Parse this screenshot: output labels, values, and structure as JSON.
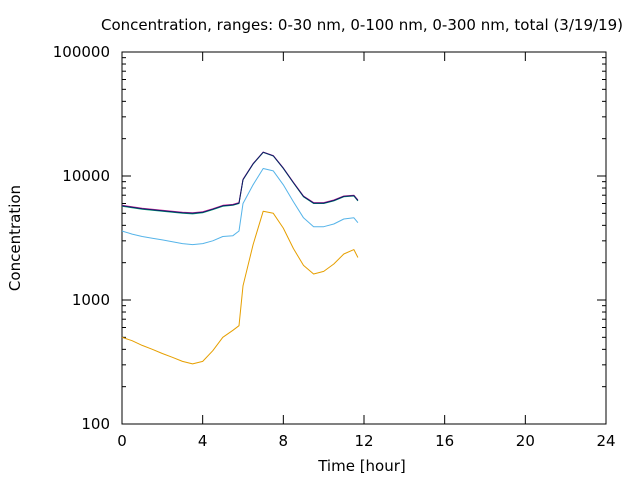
{
  "chart_data": {
    "type": "line",
    "title": "Concentration, ranges: 0-30 nm, 0-100 nm, 0-300 nm, total (3/19/19)",
    "xlabel": "Time [hour]",
    "ylabel": "Concentration",
    "xlim": [
      0,
      24
    ],
    "ylim": [
      100,
      100000
    ],
    "yscale": "log",
    "x_ticks": [
      0,
      4,
      8,
      12,
      16,
      20,
      24
    ],
    "x_tick_labels": [
      "0",
      "4",
      "8",
      "12",
      "16",
      "20",
      "24"
    ],
    "y_ticks": [
      100,
      1000,
      10000,
      100000
    ],
    "y_tick_labels": [
      "100",
      "1000",
      "10000",
      "100000"
    ],
    "grid": false,
    "legend": "none",
    "x": [
      0,
      0.5,
      1,
      1.5,
      2,
      2.5,
      3,
      3.5,
      4,
      4.5,
      5,
      5.5,
      5.8,
      6,
      6.5,
      7,
      7.5,
      8,
      8.5,
      9,
      9.5,
      10,
      10.5,
      11,
      11.5,
      11.7
    ],
    "series": [
      {
        "color": "#e69f00",
        "values": [
          500,
          470,
          430,
          400,
          370,
          345,
          320,
          305,
          320,
          390,
          500,
          570,
          620,
          1300,
          2800,
          5200,
          5000,
          3800,
          2600,
          1900,
          1620,
          1700,
          1950,
          2350,
          2550,
          2200
        ]
      },
      {
        "color": "#56b4e9",
        "values": [
          3600,
          3400,
          3250,
          3150,
          3050,
          2950,
          2850,
          2800,
          2850,
          3000,
          3250,
          3300,
          3600,
          6000,
          8500,
          11500,
          11000,
          8500,
          6200,
          4600,
          3900,
          3900,
          4100,
          4500,
          4600,
          4200
        ]
      },
      {
        "color": "#009e73",
        "values": [
          5700,
          5550,
          5400,
          5300,
          5200,
          5100,
          5000,
          4950,
          5050,
          5350,
          5700,
          5800,
          6000,
          9300,
          12500,
          15500,
          14500,
          11500,
          8800,
          6800,
          6000,
          6000,
          6300,
          6800,
          6900,
          6300
        ]
      },
      {
        "color": "#cc2299",
        "values": [
          5800,
          5650,
          5500,
          5400,
          5300,
          5200,
          5100,
          5050,
          5150,
          5450,
          5800,
          5900,
          6100,
          9400,
          12600,
          15600,
          14600,
          11600,
          8900,
          6900,
          6100,
          6100,
          6400,
          6900,
          7000,
          6400
        ]
      },
      {
        "color": "#0a1f66",
        "values": [
          5750,
          5600,
          5450,
          5350,
          5250,
          5150,
          5050,
          5000,
          5100,
          5400,
          5750,
          5850,
          6050,
          9350,
          12550,
          15550,
          14550,
          11550,
          8850,
          6850,
          6050,
          6050,
          6350,
          6850,
          6950,
          6350
        ]
      }
    ]
  }
}
